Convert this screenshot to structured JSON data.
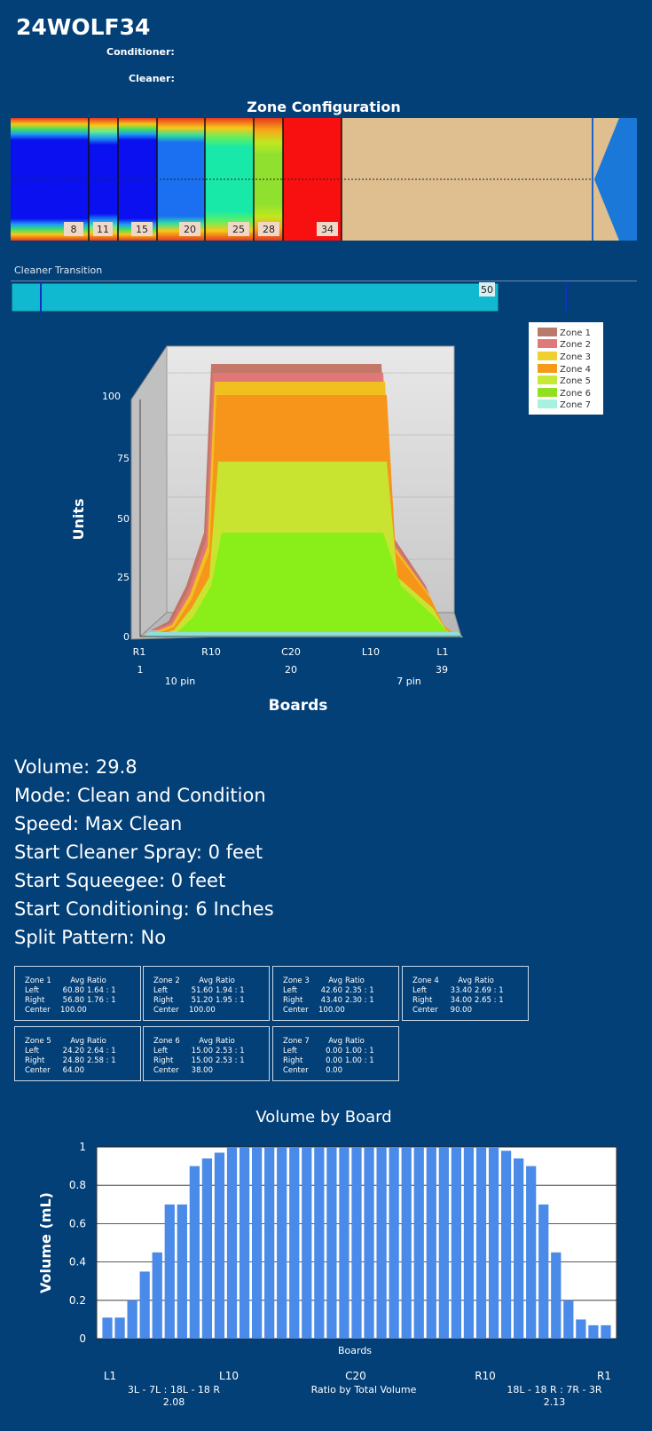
{
  "header": {
    "title": "24WOLF34",
    "conditioner_label": "Conditioner:",
    "cleaner_label": "Cleaner:"
  },
  "zone_config": {
    "title": "Zone Configuration",
    "markers": [
      "8",
      "11",
      "15",
      "20",
      "25",
      "28",
      "34"
    ]
  },
  "cleaner_transition": {
    "label": "Cleaner Transition",
    "value": "50"
  },
  "chart3d": {
    "ylabel": "Units",
    "xlabel": "Boards",
    "y_ticks": [
      "0",
      "25",
      "50",
      "75",
      "100"
    ],
    "board_labels": [
      "R1",
      "R10",
      "C20",
      "L10",
      "L1"
    ],
    "board_numbers": [
      "1",
      "20",
      "39"
    ],
    "pin_labels": [
      "10 pin",
      "7 pin"
    ],
    "legend": [
      "Zone 1",
      "Zone 2",
      "Zone 3",
      "Zone 4",
      "Zone 5",
      "Zone 6",
      "Zone 7"
    ],
    "legend_colors": [
      "#b87a6a",
      "#e07a7a",
      "#f0d030",
      "#f79a1a",
      "#c8e838",
      "#90e020",
      "#a8f0e0"
    ]
  },
  "info": {
    "volume": "Volume: 29.8",
    "mode": "Mode: Clean and Condition",
    "speed": "Speed: Max Clean",
    "spray": "Start Cleaner Spray: 0 feet",
    "squeegee": "Start Squeegee: 0 feet",
    "conditioning": "Start Conditioning: 6 Inches",
    "split": "Split Pattern: No"
  },
  "zone_table": {
    "col_avg": "Avg",
    "col_ratio": "Ratio",
    "row_left": "Left",
    "row_right": "Right",
    "row_center": "Center",
    "zones": [
      {
        "name": "Zone 1",
        "left_avg": "60.80",
        "left_ratio": "1.64 : 1",
        "right_avg": "56.80",
        "right_ratio": "1.76 : 1",
        "center": "100.00"
      },
      {
        "name": "Zone 2",
        "left_avg": "51.60",
        "left_ratio": "1.94 : 1",
        "right_avg": "51.20",
        "right_ratio": "1.95 : 1",
        "center": "100.00"
      },
      {
        "name": "Zone 3",
        "left_avg": "42.60",
        "left_ratio": "2.35 : 1",
        "right_avg": "43.40",
        "right_ratio": "2.30 : 1",
        "center": "100.00"
      },
      {
        "name": "Zone 4",
        "left_avg": "33.40",
        "left_ratio": "2.69 : 1",
        "right_avg": "34.00",
        "right_ratio": "2.65 : 1",
        "center": "90.00"
      },
      {
        "name": "Zone 5",
        "left_avg": "24.20",
        "left_ratio": "2.64 : 1",
        "right_avg": "24.80",
        "right_ratio": "2.58 : 1",
        "center": "64.00"
      },
      {
        "name": "Zone 6",
        "left_avg": "15.00",
        "left_ratio": "2.53 : 1",
        "right_avg": "15.00",
        "right_ratio": "2.53 : 1",
        "center": "38.00"
      },
      {
        "name": "Zone 7",
        "left_avg": "0.00",
        "left_ratio": "1.00 : 1",
        "right_avg": "0.00",
        "right_ratio": "1.00 : 1",
        "center": "0.00"
      }
    ]
  },
  "chart_data": {
    "type": "bar",
    "title": "Volume by Board",
    "xlabel": "Boards",
    "ylabel": "Volume (mL)",
    "ylim": [
      0,
      1
    ],
    "y_ticks": [
      "0",
      "0.2",
      "0.4",
      "0.6",
      "0.8",
      "1"
    ],
    "grid": true,
    "x_tick_labels": [
      "L1",
      "L10",
      "C20",
      "R10",
      "R1"
    ],
    "values": [
      0.11,
      0.11,
      0.2,
      0.35,
      0.45,
      0.7,
      0.7,
      0.9,
      0.94,
      0.97,
      1,
      1,
      1,
      1,
      1,
      1,
      1,
      1,
      1,
      1,
      1,
      1,
      1,
      1,
      1,
      1,
      1,
      1,
      1,
      1,
      1,
      1,
      0.98,
      0.94,
      0.9,
      0.7,
      0.45,
      0.2,
      0.1,
      0.07,
      0.07
    ],
    "bar_color": "#4a8ae8",
    "ratio_left_label": "3L - 7L : 18L - 18 R",
    "ratio_left_value": "2.08",
    "ratio_center_label": "Ratio by Total Volume",
    "ratio_right_label": "18L - 18 R : 7R - 3R",
    "ratio_right_value": "2.13"
  }
}
